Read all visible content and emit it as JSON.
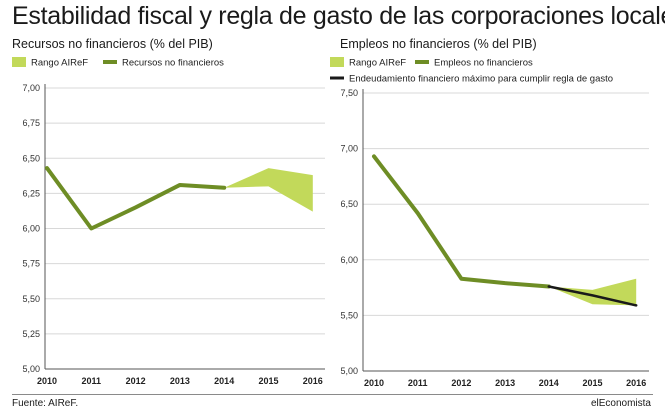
{
  "title": "Estabilidad fiscal y regla de gasto de las corporaciones locales",
  "source": "Fuente: AIReF.",
  "brand": "elEconomista",
  "colors": {
    "band": "#c2d95a",
    "series": "#6e8d25",
    "target": "#1a1a1a",
    "grid": "#d8d8d8",
    "axis": "#555555"
  },
  "chart_data": [
    {
      "type": "line",
      "title": "Recursos no financieros (% del PIB)",
      "x": [
        "2010",
        "2011",
        "2012",
        "2013",
        "2014",
        "2015",
        "2016"
      ],
      "ylim": [
        5.0,
        7.0
      ],
      "yticks": [
        "7,00",
        "6,75",
        "6,50",
        "6,25",
        "6,00",
        "5,75",
        "5,50",
        "5,25",
        "5,00"
      ],
      "series": [
        {
          "name": "Recursos no financieros",
          "kind": "line",
          "values": [
            6.43,
            6.0,
            6.15,
            6.31,
            6.29,
            null,
            null
          ]
        }
      ],
      "band": {
        "name": "Rango AIReF",
        "x": [
          "2014",
          "2015",
          "2016"
        ],
        "low": [
          6.29,
          6.3,
          6.12
        ],
        "high": [
          6.29,
          6.43,
          6.38
        ]
      },
      "legend": [
        "Rango AIReF",
        "Recursos no financieros"
      ]
    },
    {
      "type": "line",
      "title": "Empleos no financieros (% del PIB)",
      "x": [
        "2010",
        "2011",
        "2012",
        "2013",
        "2014",
        "2015",
        "2016"
      ],
      "ylim": [
        5.0,
        7.5
      ],
      "yticks": [
        "7,50",
        "7,00",
        "6,50",
        "6,00",
        "5,50",
        "5,00"
      ],
      "series": [
        {
          "name": "Empleos no financieros",
          "kind": "line",
          "values": [
            6.93,
            6.42,
            5.83,
            5.79,
            5.76,
            null,
            null
          ]
        },
        {
          "name": "Endeudamiento financiero máximo para cumplir regla de gasto",
          "kind": "target",
          "values": [
            null,
            null,
            null,
            null,
            5.76,
            5.68,
            5.59
          ]
        }
      ],
      "band": {
        "name": "Rango AIReF",
        "x": [
          "2014",
          "2015",
          "2016"
        ],
        "low": [
          5.76,
          5.6,
          5.59
        ],
        "high": [
          5.76,
          5.73,
          5.83
        ]
      },
      "legend": [
        "Rango AIReF",
        "Empleos no financieros",
        "Endeudamiento financiero máximo para cumplir regla de gasto"
      ]
    }
  ]
}
